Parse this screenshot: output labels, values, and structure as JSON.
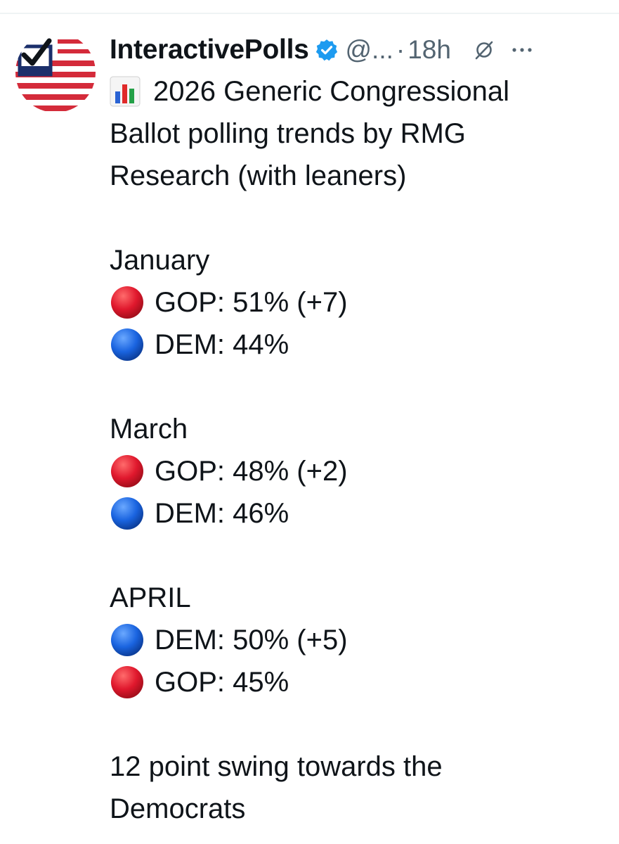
{
  "post": {
    "display_name": "InteractivePolls",
    "handle": "@...",
    "separator": "·",
    "time": "18h",
    "title_line1": "2026 Generic Congressional",
    "title_line2": "Ballot polling trends by RMG",
    "title_line3": "Research (with leaners)",
    "sections": [
      {
        "month": "January",
        "rows": [
          {
            "party": "GOP",
            "text": "GOP: 51% (+7)",
            "dot_color": "#e0182d"
          },
          {
            "party": "DEM",
            "text": "DEM: 44%",
            "dot_color": "#1a64e0"
          }
        ]
      },
      {
        "month": "March",
        "rows": [
          {
            "party": "GOP",
            "text": "GOP: 48% (+2)",
            "dot_color": "#e0182d"
          },
          {
            "party": "DEM",
            "text": "DEM: 46%",
            "dot_color": "#1a64e0"
          }
        ]
      },
      {
        "month": "APRIL",
        "rows": [
          {
            "party": "DEM",
            "text": "DEM: 50% (+5)",
            "dot_color": "#1a64e0"
          },
          {
            "party": "GOP",
            "text": "GOP: 45%",
            "dot_color": "#e0182d"
          }
        ]
      }
    ],
    "footer_line1": "12 point swing towards the",
    "footer_line2": "Democrats"
  },
  "icons": {
    "verified": "verified-badge-icon",
    "grok": "grok-icon",
    "more": "more-options-icon",
    "chart": "bar-chart-emoji-icon",
    "red_dot": "red-circle-emoji-icon",
    "blue_dot": "blue-circle-emoji-icon"
  },
  "colors": {
    "text": "#0f1419",
    "secondary": "#536471",
    "verified": "#1d9bf0",
    "gop": "#e0182d",
    "dem": "#1a64e0"
  }
}
